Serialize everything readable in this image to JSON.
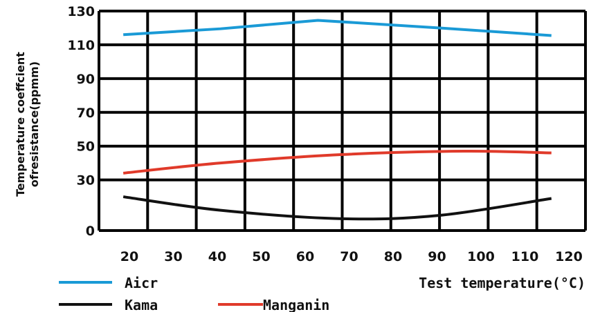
{
  "chart_data": {
    "type": "line",
    "ylabel_lines": [
      "Temperature coeffcient",
      "ofresistance(ppmm)"
    ],
    "xlabel": "Test temperature(°C)",
    "xlim": [
      20,
      120
    ],
    "ylim": [
      0,
      130
    ],
    "x_ticks": [
      "20",
      "30",
      "40",
      "50",
      "60",
      "70",
      "80",
      "90",
      "100",
      "110",
      "120"
    ],
    "y_ticks": [
      "0",
      "30",
      "50",
      "70",
      "90",
      "110",
      "130"
    ],
    "grid": true,
    "series": [
      {
        "name": "Aicr",
        "color": "#1a9ad6",
        "x": [
          25,
          45,
          65,
          90,
          113
        ],
        "y": [
          116,
          119.5,
          124.5,
          120,
          115.5
        ]
      },
      {
        "name": "Kama",
        "color": "#111111",
        "x": [
          25,
          45,
          70,
          90,
          113
        ],
        "y": [
          20,
          12,
          7,
          9,
          19
        ]
      },
      {
        "name": "Manganin",
        "color": "#e03a2a",
        "x": [
          25,
          45,
          70,
          95,
          113
        ],
        "y": [
          34,
          40,
          45,
          47,
          46
        ]
      }
    ]
  }
}
